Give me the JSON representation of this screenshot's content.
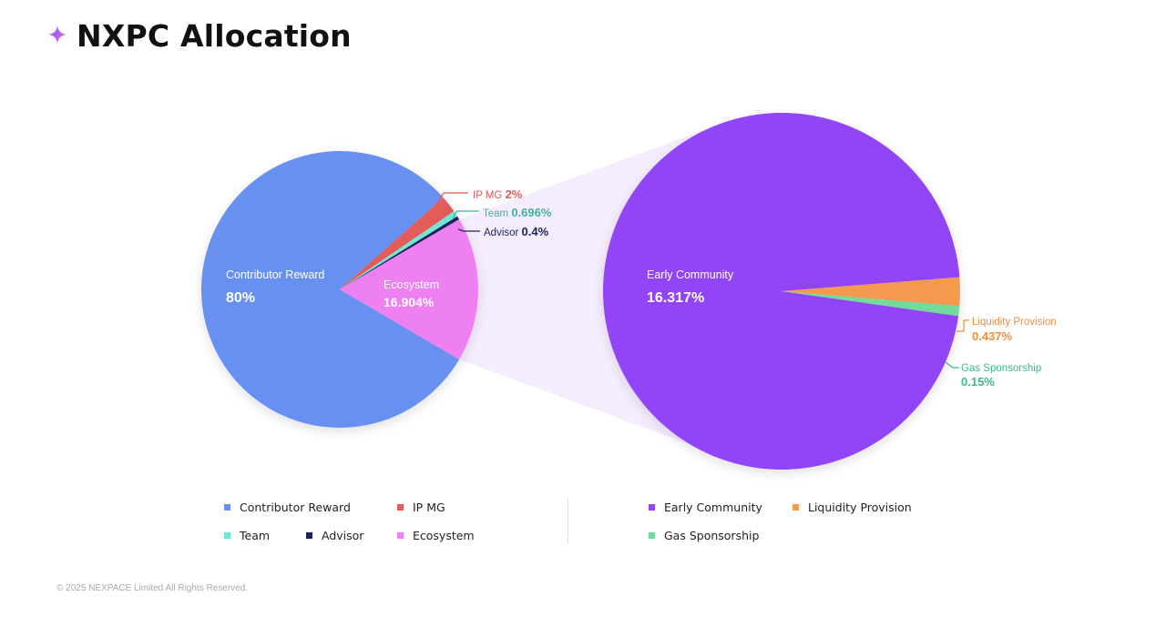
{
  "header": {
    "title": "NXPC Allocation",
    "icon": "sparkle-star-icon"
  },
  "chart_data": [
    {
      "type": "pie",
      "title": "",
      "slices": [
        {
          "label": "Contributor Reward",
          "value": 80,
          "display": "80%",
          "color": "#6790F0"
        },
        {
          "label": "IP MG",
          "value": 2,
          "display": "2%",
          "color": "#E35B58"
        },
        {
          "label": "Team",
          "value": 0.696,
          "display": "0.696%",
          "color": "#6FE5D8"
        },
        {
          "label": "Advisor",
          "value": 0.4,
          "display": "0.4%",
          "color": "#1C2459"
        },
        {
          "label": "Ecosystem",
          "value": 16.904,
          "display": "16.904%",
          "color": "#EE80F2"
        }
      ]
    },
    {
      "type": "pie",
      "title": "",
      "slices": [
        {
          "label": "Early Community",
          "value": 16.317,
          "display": "16.317%",
          "color": "#9145F7"
        },
        {
          "label": "Liquidity Provision",
          "value": 0.437,
          "display": "0.437%",
          "color": "#F39A4F"
        },
        {
          "label": "Gas Sponsorship",
          "value": 0.15,
          "display": "0.15%",
          "color": "#72DA9D"
        }
      ]
    }
  ],
  "label_colors": {
    "IP MG": "#E35B58",
    "Team": "#3FB3A4",
    "Advisor": "#1C2459",
    "Liquidity Provision": "#EE8F3F",
    "Gas Sponsorship": "#3DB88F"
  },
  "legend": {
    "left": [
      "Contributor Reward",
      "IP MG",
      "Team",
      "Advisor",
      "Ecosystem"
    ],
    "right": [
      "Early Community",
      "Liquidity Provision",
      "Gas Sponsorship"
    ]
  },
  "footer": {
    "copyright": "© 2025 NEXPACE Limited All Rights Reserved."
  }
}
